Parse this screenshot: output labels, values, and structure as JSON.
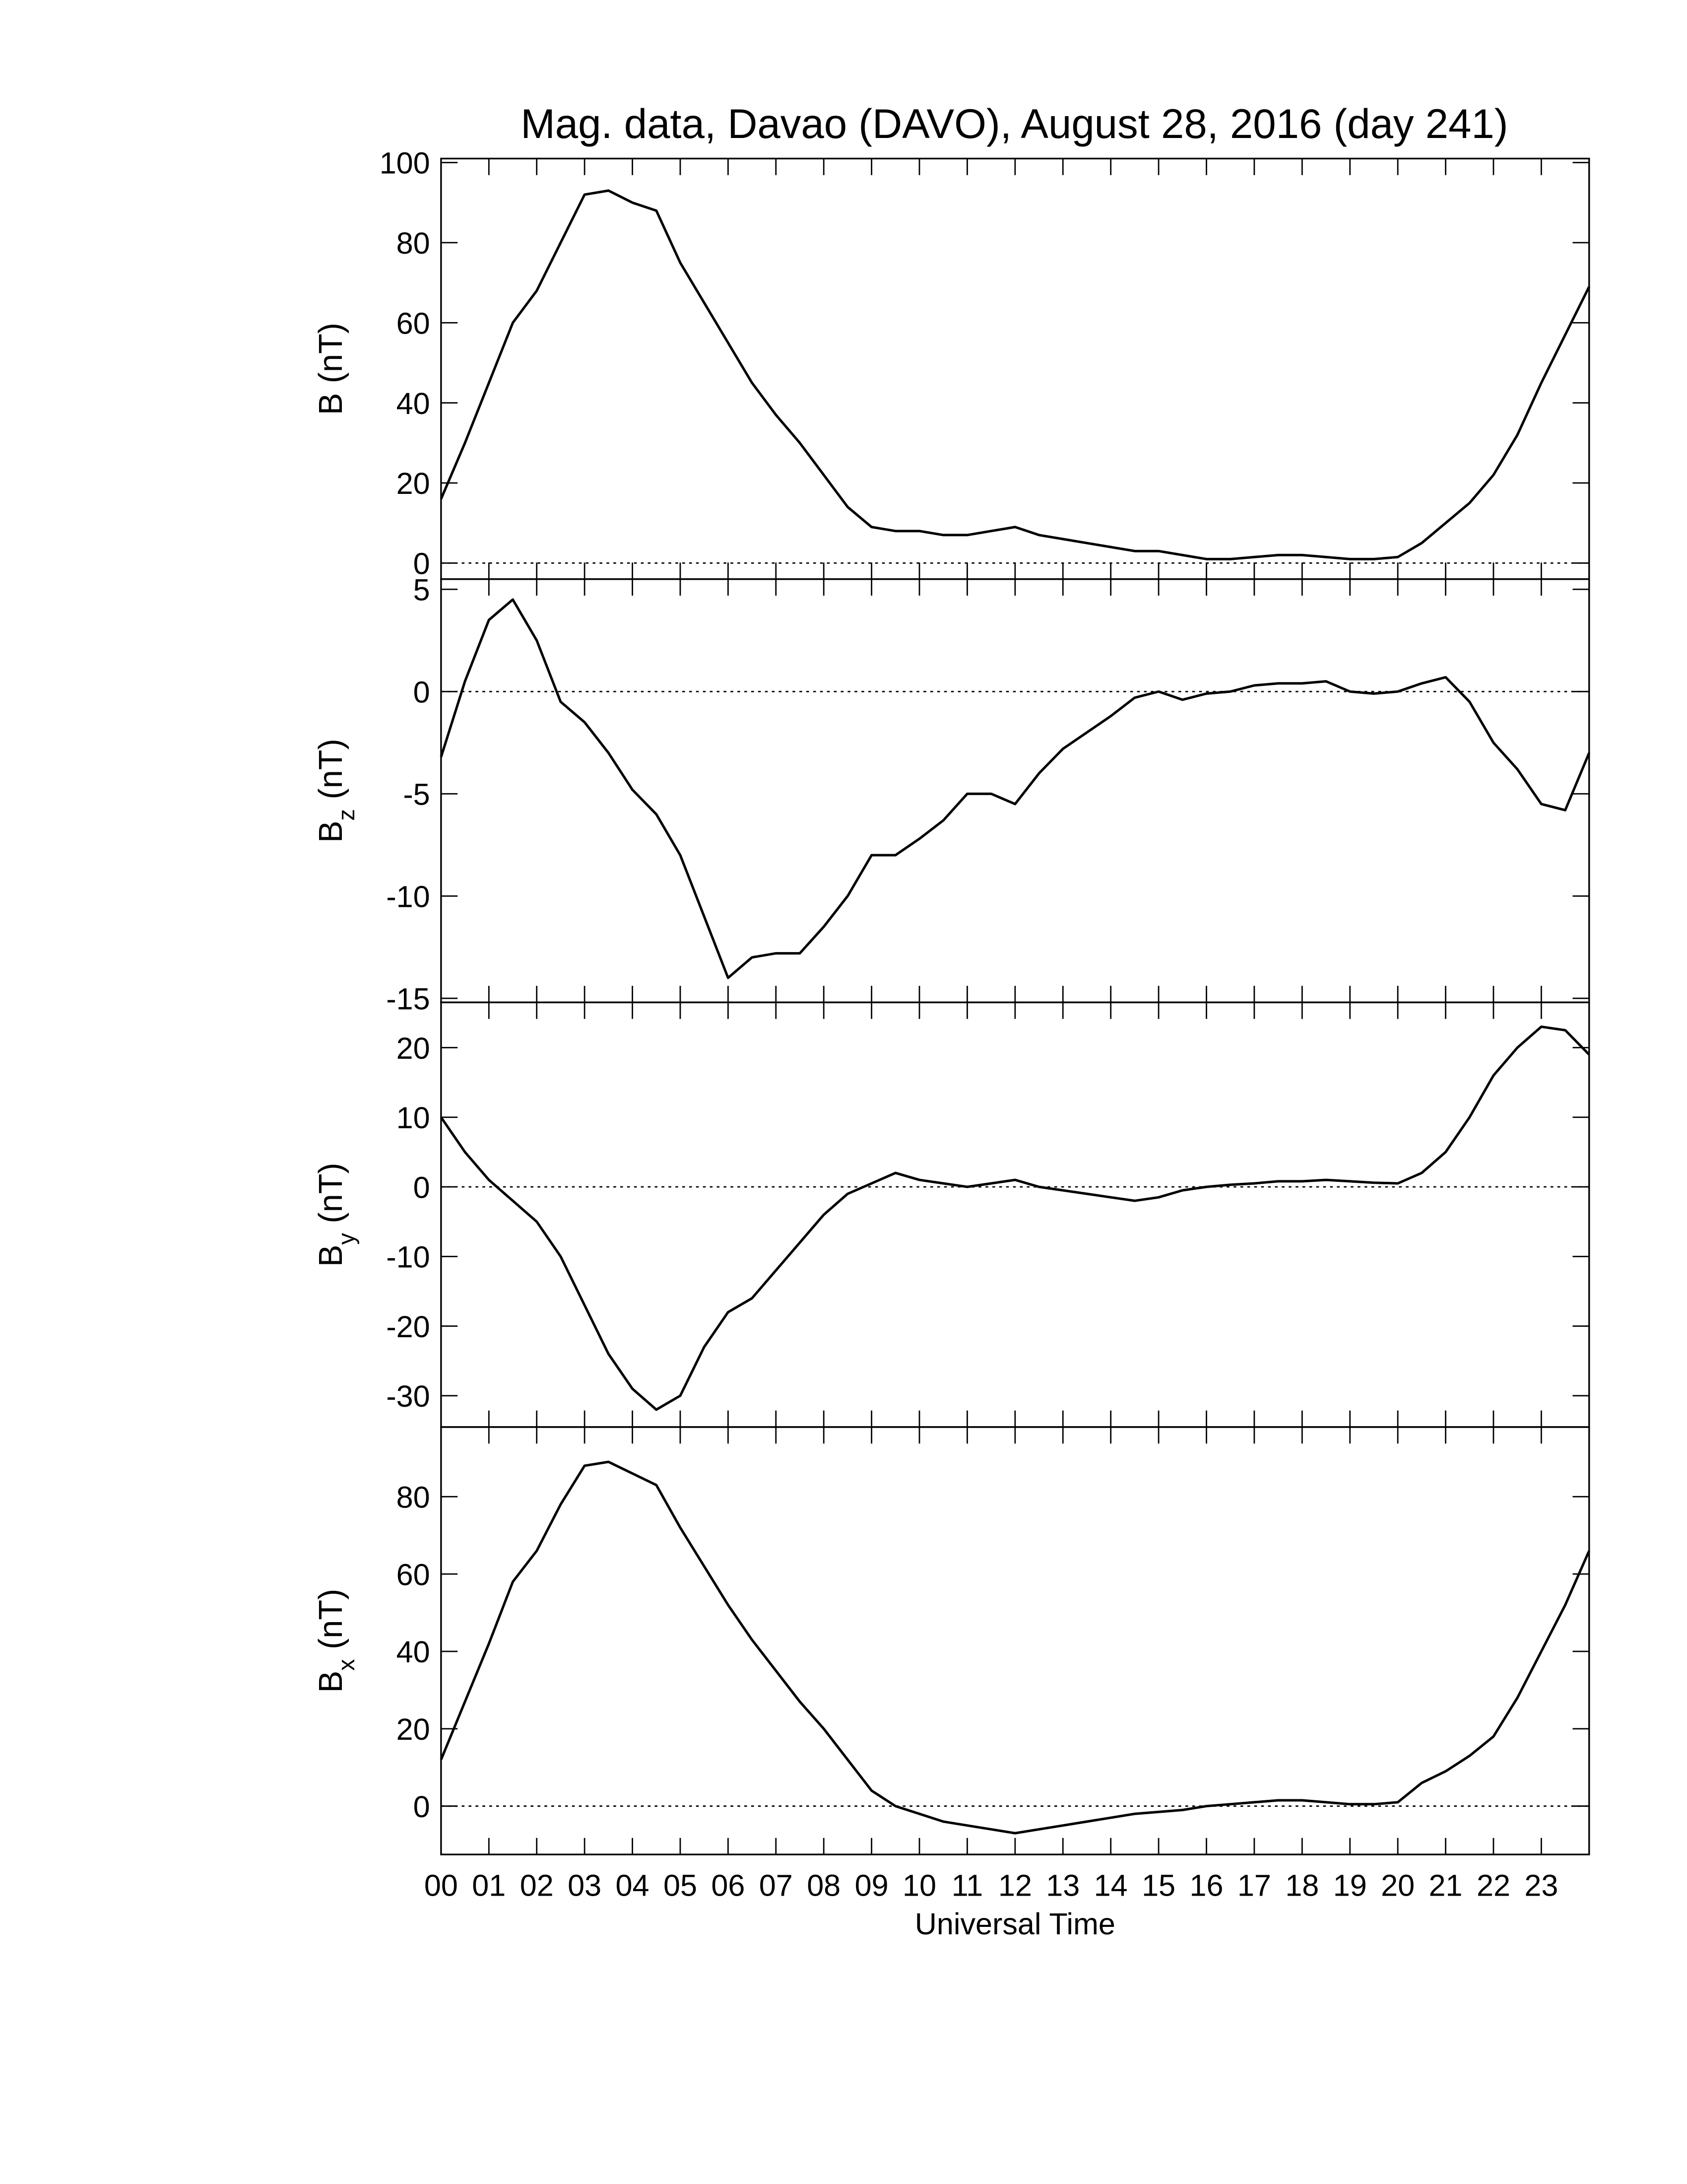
{
  "chart_data": [
    {
      "type": "line",
      "title": "Mag. data, Davao (DAVO), August 28, 2016 (day 241)",
      "ylabel": "B",
      "ylabel_unit": "(nT)",
      "zero_line": true,
      "ylim": [
        -4,
        101
      ],
      "yticks": [
        0,
        20,
        40,
        60,
        80,
        100
      ],
      "x": [
        0,
        0.5,
        1,
        1.5,
        2,
        2.5,
        3,
        3.5,
        4,
        4.5,
        5,
        5.5,
        6,
        6.5,
        7,
        7.5,
        8,
        8.5,
        9,
        9.5,
        10,
        10.5,
        11,
        11.5,
        12,
        12.5,
        13,
        13.5,
        14,
        14.5,
        15,
        15.5,
        16,
        16.5,
        17,
        17.5,
        18,
        18.5,
        19,
        19.5,
        20,
        20.5,
        21,
        21.5,
        22,
        22.5,
        23,
        23.5,
        24
      ],
      "series": [
        {
          "color": "#000000",
          "values": [
            16,
            30,
            45,
            60,
            68,
            80,
            92,
            93,
            90,
            88,
            75,
            65,
            55,
            45,
            37,
            30,
            22,
            14,
            9,
            8,
            8,
            7,
            7,
            8,
            9,
            7,
            6,
            5,
            4,
            3,
            3,
            2,
            1,
            1,
            1.5,
            2,
            2,
            1.5,
            1,
            1,
            1.5,
            5,
            10,
            15,
            22,
            32,
            45,
            57,
            69
          ]
        }
      ]
    },
    {
      "type": "line",
      "ylabel": "B",
      "ylabel_subscript": "z",
      "ylabel_unit": "(nT)",
      "zero_line": true,
      "ylim": [
        -15.2,
        5.5
      ],
      "yticks": [
        5,
        0,
        -5,
        -10,
        -15
      ],
      "x": [
        0,
        0.5,
        1,
        1.5,
        2,
        2.5,
        3,
        3.5,
        4,
        4.5,
        5,
        5.5,
        6,
        6.5,
        7,
        7.5,
        8,
        8.5,
        9,
        9.5,
        10,
        10.5,
        11,
        11.5,
        12,
        12.5,
        13,
        13.5,
        14,
        14.5,
        15,
        15.5,
        16,
        16.5,
        17,
        17.5,
        18,
        18.5,
        19,
        19.5,
        20,
        20.5,
        21,
        21.5,
        22,
        22.5,
        23,
        23.5,
        24
      ],
      "series": [
        {
          "color": "#000000",
          "values": [
            -3.2,
            0.5,
            3.5,
            4.5,
            2.5,
            -0.5,
            -1.5,
            -3,
            -4.8,
            -6,
            -8,
            -11,
            -14,
            -13,
            -12.8,
            -12.8,
            -11.5,
            -10,
            -8,
            -8,
            -7.2,
            -6.3,
            -5,
            -5,
            -5.5,
            -4,
            -2.8,
            -2,
            -1.2,
            -0.3,
            0,
            -0.4,
            -0.1,
            0,
            0.3,
            0.4,
            0.4,
            0.5,
            0,
            -0.1,
            0,
            0.4,
            0.7,
            -0.5,
            -2.5,
            -3.8,
            -5.5,
            -5.8,
            -3
          ]
        }
      ]
    },
    {
      "type": "line",
      "ylabel": "B",
      "ylabel_subscript": "y",
      "ylabel_unit": "(nT)",
      "zero_line": true,
      "ylim": [
        -34.5,
        26.5
      ],
      "yticks": [
        20,
        10,
        0,
        -10,
        -20,
        -30
      ],
      "x": [
        0,
        0.5,
        1,
        1.5,
        2,
        2.5,
        3,
        3.5,
        4,
        4.5,
        5,
        5.5,
        6,
        6.5,
        7,
        7.5,
        8,
        8.5,
        9,
        9.5,
        10,
        10.5,
        11,
        11.5,
        12,
        12.5,
        13,
        13.5,
        14,
        14.5,
        15,
        15.5,
        16,
        16.5,
        17,
        17.5,
        18,
        18.5,
        19,
        19.5,
        20,
        20.5,
        21,
        21.5,
        22,
        22.5,
        23,
        23.5,
        24
      ],
      "series": [
        {
          "color": "#000000",
          "values": [
            10,
            5,
            1,
            -2,
            -5,
            -10,
            -17,
            -24,
            -29,
            -32,
            -30,
            -23,
            -18,
            -16,
            -12,
            -8,
            -4,
            -1,
            0.5,
            2,
            1,
            0.5,
            0,
            0.5,
            1,
            0,
            -0.5,
            -1,
            -1.5,
            -2,
            -1.5,
            -0.5,
            0,
            0.3,
            0.5,
            0.8,
            0.8,
            1,
            0.8,
            0.6,
            0.5,
            2,
            5,
            10,
            16,
            20,
            23,
            22.5,
            19
          ]
        }
      ]
    },
    {
      "type": "line",
      "ylabel": "B",
      "ylabel_subscript": "x",
      "ylabel_unit": "(nT)",
      "zero_line": true,
      "xlabel": "Universal Time",
      "ylim": [
        -12.5,
        98
      ],
      "yticks": [
        0,
        20,
        40,
        60,
        80
      ],
      "xlim": [
        0,
        24
      ],
      "xticks": [
        {
          "value": 0,
          "label": "00"
        },
        {
          "value": 1,
          "label": "01"
        },
        {
          "value": 2,
          "label": "02"
        },
        {
          "value": 3,
          "label": "03"
        },
        {
          "value": 4,
          "label": "04"
        },
        {
          "value": 5,
          "label": "05"
        },
        {
          "value": 6,
          "label": "06"
        },
        {
          "value": 7,
          "label": "07"
        },
        {
          "value": 8,
          "label": "08"
        },
        {
          "value": 9,
          "label": "09"
        },
        {
          "value": 10,
          "label": "10"
        },
        {
          "value": 11,
          "label": "11"
        },
        {
          "value": 12,
          "label": "12"
        },
        {
          "value": 13,
          "label": "13"
        },
        {
          "value": 14,
          "label": "14"
        },
        {
          "value": 15,
          "label": "15"
        },
        {
          "value": 16,
          "label": "16"
        },
        {
          "value": 17,
          "label": "17"
        },
        {
          "value": 18,
          "label": "18"
        },
        {
          "value": 19,
          "label": "19"
        },
        {
          "value": 20,
          "label": "20"
        },
        {
          "value": 21,
          "label": "21"
        },
        {
          "value": 22,
          "label": "22"
        },
        {
          "value": 23,
          "label": "23"
        }
      ],
      "x": [
        0,
        0.5,
        1,
        1.5,
        2,
        2.5,
        3,
        3.5,
        4,
        4.5,
        5,
        5.5,
        6,
        6.5,
        7,
        7.5,
        8,
        8.5,
        9,
        9.5,
        10,
        10.5,
        11,
        11.5,
        12,
        12.5,
        13,
        13.5,
        14,
        14.5,
        15,
        15.5,
        16,
        16.5,
        17,
        17.5,
        18,
        18.5,
        19,
        19.5,
        20,
        20.5,
        21,
        21.5,
        22,
        22.5,
        23,
        23.5,
        24
      ],
      "series": [
        {
          "color": "#000000",
          "values": [
            12,
            27,
            42,
            58,
            66,
            78,
            88,
            89,
            86,
            83,
            72,
            62,
            52,
            43,
            35,
            27,
            20,
            12,
            4,
            0,
            -2,
            -4,
            -5,
            -6,
            -7,
            -6,
            -5,
            -4,
            -3,
            -2,
            -1.5,
            -1,
            0,
            0.5,
            1,
            1.5,
            1.5,
            1,
            0.5,
            0.5,
            1,
            6,
            9,
            13,
            18,
            28,
            40,
            52,
            66
          ]
        }
      ]
    }
  ]
}
